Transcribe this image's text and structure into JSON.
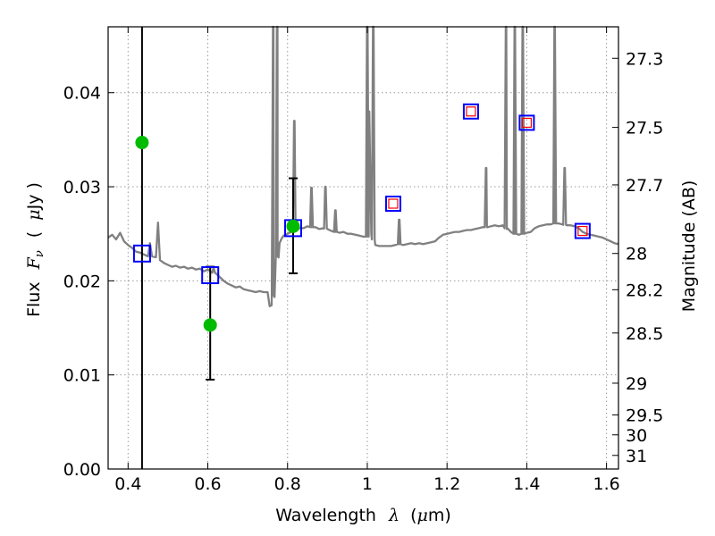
{
  "chart_data": {
    "type": "scatter",
    "xlabel": "Wavelength λ (μm)",
    "xlabel_parts": [
      "Wavelength",
      "λ",
      "(",
      "μ",
      "m)"
    ],
    "ylabel": "Flux F_ν ( μJy )",
    "ylabel_parts": [
      "Flux",
      "F",
      "ν",
      "(",
      "μ",
      "Jy )"
    ],
    "y2label": "Magnitude (AB)",
    "xlim": [
      0.35,
      1.63
    ],
    "ylim": [
      0.0,
      0.047
    ],
    "grid": true,
    "x_ticks": [
      0.4,
      0.6,
      0.8,
      1.0,
      1.2,
      1.4,
      1.6
    ],
    "x_tick_labels": [
      "0.4",
      "0.6",
      "0.8",
      "1",
      "1.2",
      "1.4",
      "1.6"
    ],
    "y_ticks": [
      0.0,
      0.01,
      0.02,
      0.03,
      0.04
    ],
    "y_tick_labels": [
      "0.00",
      "0.01",
      "0.02",
      "0.03",
      "0.04"
    ],
    "y2_ticks": [
      {
        "label": "27.3",
        "mag": 27.3
      },
      {
        "label": "27.5",
        "mag": 27.5
      },
      {
        "label": "27.7",
        "mag": 27.7
      },
      {
        "label": "28",
        "mag": 28.0
      },
      {
        "label": "28.2",
        "mag": 28.2
      },
      {
        "label": "28.5",
        "mag": 28.5
      },
      {
        "label": "29",
        "mag": 29.0
      },
      {
        "label": "29.5",
        "mag": 29.5
      },
      {
        "label": "30",
        "mag": 30.0
      },
      {
        "label": "31",
        "mag": 31.0
      }
    ],
    "colors": {
      "model": "#808080",
      "observed": "#00bb00",
      "model_phot": "#0000ff",
      "model_phot_inner": "#ff0000",
      "errorbar": "#000000",
      "grid": "#999999"
    },
    "observed_points": [
      {
        "x": 0.435,
        "y": 0.0347,
        "yerr_low": 0.0347,
        "yerr_high": 0.015
      },
      {
        "x": 0.606,
        "y": 0.0153,
        "yerr_low": 0.0058,
        "yerr_high": 0.0062
      },
      {
        "x": 0.814,
        "y": 0.0258,
        "yerr_low": 0.005,
        "yerr_high": 0.0051
      }
    ],
    "model_photometry_optical": [
      {
        "x": 0.435,
        "y": 0.0229
      },
      {
        "x": 0.606,
        "y": 0.0206
      },
      {
        "x": 0.814,
        "y": 0.0256
      }
    ],
    "model_photometry_nir": [
      {
        "x": 1.065,
        "y": 0.0282
      },
      {
        "x": 1.26,
        "y": 0.038
      },
      {
        "x": 1.4,
        "y": 0.0368
      },
      {
        "x": 1.54,
        "y": 0.0253
      }
    ],
    "model_spectrum": [
      [
        0.35,
        0.0246
      ],
      [
        0.36,
        0.0249
      ],
      [
        0.37,
        0.0244
      ],
      [
        0.38,
        0.0251
      ],
      [
        0.39,
        0.0242
      ],
      [
        0.4,
        0.0238
      ],
      [
        0.41,
        0.0235
      ],
      [
        0.42,
        0.0231
      ],
      [
        0.43,
        0.023
      ],
      [
        0.44,
        0.0228
      ],
      [
        0.45,
        0.0226
      ],
      [
        0.455,
        0.024
      ],
      [
        0.46,
        0.0226
      ],
      [
        0.47,
        0.0225
      ],
      [
        0.475,
        0.0262
      ],
      [
        0.48,
        0.0222
      ],
      [
        0.49,
        0.0219
      ],
      [
        0.5,
        0.0217
      ],
      [
        0.51,
        0.0215
      ],
      [
        0.52,
        0.0216
      ],
      [
        0.53,
        0.0214
      ],
      [
        0.54,
        0.0215
      ],
      [
        0.55,
        0.0213
      ],
      [
        0.56,
        0.0214
      ],
      [
        0.57,
        0.0212
      ],
      [
        0.58,
        0.0213
      ],
      [
        0.59,
        0.021
      ],
      [
        0.6,
        0.0212
      ],
      [
        0.61,
        0.0209
      ],
      [
        0.62,
        0.0208
      ],
      [
        0.63,
        0.0204
      ],
      [
        0.64,
        0.02
      ],
      [
        0.65,
        0.0197
      ],
      [
        0.66,
        0.0195
      ],
      [
        0.67,
        0.0193
      ],
      [
        0.68,
        0.0194
      ],
      [
        0.69,
        0.0191
      ],
      [
        0.7,
        0.019
      ],
      [
        0.71,
        0.0189
      ],
      [
        0.72,
        0.0188
      ],
      [
        0.73,
        0.0189
      ],
      [
        0.74,
        0.0188
      ],
      [
        0.75,
        0.0188
      ],
      [
        0.755,
        0.0173
      ],
      [
        0.76,
        0.0174
      ],
      [
        0.765,
        0.0185
      ],
      [
        0.77,
        0.022
      ],
      [
        0.775,
        0.0226
      ],
      [
        0.78,
        0.024
      ],
      [
        0.785,
        0.0245
      ],
      [
        0.79,
        0.0248
      ],
      [
        0.8,
        0.025
      ],
      [
        0.81,
        0.0252
      ],
      [
        0.82,
        0.0254
      ],
      [
        0.83,
        0.0256
      ],
      [
        0.84,
        0.0256
      ],
      [
        0.85,
        0.0258
      ],
      [
        0.86,
        0.0257
      ],
      [
        0.87,
        0.0257
      ],
      [
        0.88,
        0.0255
      ],
      [
        0.89,
        0.0256
      ],
      [
        0.9,
        0.0255
      ],
      [
        0.91,
        0.0253
      ],
      [
        0.92,
        0.0252
      ],
      [
        0.93,
        0.0251
      ],
      [
        0.94,
        0.0252
      ],
      [
        0.95,
        0.025
      ],
      [
        0.96,
        0.025
      ],
      [
        0.97,
        0.0249
      ],
      [
        0.98,
        0.0248
      ],
      [
        0.99,
        0.0247
      ],
      [
        1.0,
        0.0247
      ],
      [
        1.005,
        0.038
      ],
      [
        1.01,
        0.025
      ],
      [
        1.02,
        0.0238
      ],
      [
        1.03,
        0.0237
      ],
      [
        1.04,
        0.0237
      ],
      [
        1.05,
        0.0237
      ],
      [
        1.06,
        0.0237
      ],
      [
        1.07,
        0.0238
      ],
      [
        1.08,
        0.0239
      ],
      [
        1.09,
        0.0238
      ],
      [
        1.1,
        0.0239
      ],
      [
        1.11,
        0.024
      ],
      [
        1.12,
        0.0239
      ],
      [
        1.13,
        0.024
      ],
      [
        1.14,
        0.0239
      ],
      [
        1.15,
        0.024
      ],
      [
        1.16,
        0.0241
      ],
      [
        1.17,
        0.0242
      ],
      [
        1.18,
        0.0246
      ],
      [
        1.19,
        0.0249
      ],
      [
        1.2,
        0.025
      ],
      [
        1.21,
        0.0251
      ],
      [
        1.22,
        0.0252
      ],
      [
        1.23,
        0.0252
      ],
      [
        1.24,
        0.0253
      ],
      [
        1.25,
        0.0254
      ],
      [
        1.26,
        0.0254
      ],
      [
        1.27,
        0.0255
      ],
      [
        1.28,
        0.0256
      ],
      [
        1.29,
        0.0257
      ],
      [
        1.3,
        0.0257
      ],
      [
        1.31,
        0.0258
      ],
      [
        1.32,
        0.0259
      ],
      [
        1.33,
        0.0258
      ],
      [
        1.34,
        0.0259
      ],
      [
        1.35,
        0.0255
      ],
      [
        1.36,
        0.0252
      ],
      [
        1.37,
        0.025
      ],
      [
        1.38,
        0.0249
      ],
      [
        1.39,
        0.025
      ],
      [
        1.4,
        0.0251
      ],
      [
        1.41,
        0.0252
      ],
      [
        1.42,
        0.0256
      ],
      [
        1.43,
        0.0258
      ],
      [
        1.44,
        0.0259
      ],
      [
        1.45,
        0.026
      ],
      [
        1.46,
        0.026
      ],
      [
        1.47,
        0.0261
      ],
      [
        1.48,
        0.0261
      ],
      [
        1.49,
        0.026
      ],
      [
        1.5,
        0.0259
      ],
      [
        1.51,
        0.0259
      ],
      [
        1.52,
        0.0258
      ],
      [
        1.53,
        0.0256
      ],
      [
        1.54,
        0.0252
      ],
      [
        1.55,
        0.025
      ],
      [
        1.56,
        0.0249
      ],
      [
        1.57,
        0.0248
      ],
      [
        1.58,
        0.0247
      ],
      [
        1.59,
        0.0246
      ],
      [
        1.6,
        0.0244
      ],
      [
        1.61,
        0.0242
      ],
      [
        1.62,
        0.024
      ],
      [
        1.63,
        0.0239
      ]
    ],
    "emission_lines": [
      {
        "x": 0.6145,
        "peak": 0.0213
      },
      {
        "x": 0.764,
        "peak": 0.047
      },
      {
        "x": 0.774,
        "peak": 0.047
      },
      {
        "x": 0.817,
        "peak": 0.037
      },
      {
        "x": 0.86,
        "peak": 0.0299
      },
      {
        "x": 0.895,
        "peak": 0.03
      },
      {
        "x": 0.92,
        "peak": 0.0275
      },
      {
        "x": 1.0,
        "peak": 0.047
      },
      {
        "x": 1.015,
        "peak": 0.047
      },
      {
        "x": 1.08,
        "peak": 0.0265
      },
      {
        "x": 1.298,
        "peak": 0.032
      },
      {
        "x": 1.348,
        "peak": 0.047
      },
      {
        "x": 1.37,
        "peak": 0.047
      },
      {
        "x": 1.39,
        "peak": 0.047
      },
      {
        "x": 1.47,
        "peak": 0.047
      },
      {
        "x": 1.495,
        "peak": 0.032
      }
    ]
  }
}
